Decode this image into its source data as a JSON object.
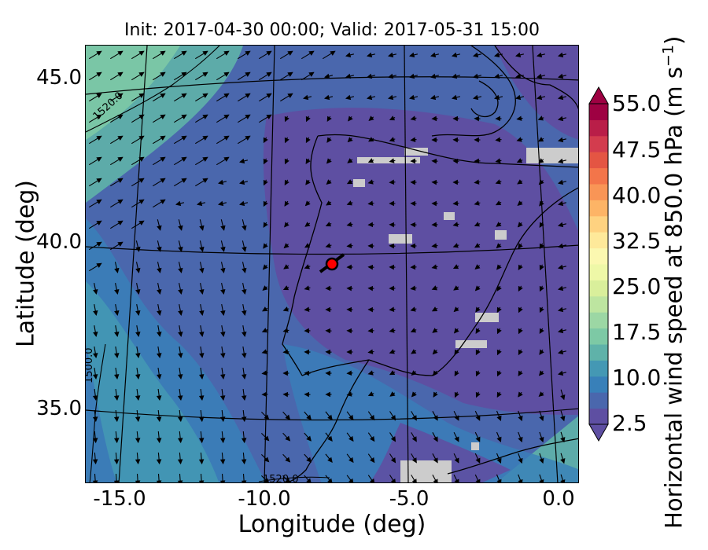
{
  "title": "Init: 2017-04-30 00:00; Valid: 2017-05-31 15:00",
  "axes": {
    "xlabel": "Longitude (deg)",
    "ylabel": "Latitude (deg)",
    "x_ticks": [
      "-15.0",
      "-10.0",
      "-5.0",
      "0.0"
    ],
    "y_ticks": [
      "45.0",
      "40.0",
      "35.0"
    ]
  },
  "colorbar": {
    "label": "Horizontal wind speed at 850.0 hPa (m s",
    "label_unit_superscript": "−1",
    "label_close": ")",
    "ticks": [
      "55.0",
      "47.5",
      "40.0",
      "32.5",
      "25.0",
      "17.5",
      "10.0",
      "2.5"
    ],
    "colors": [
      "#5e4fa2",
      "#4a67ad",
      "#3880b9",
      "#4498b4",
      "#5fb2a9",
      "#7dc9a5",
      "#9cd7a4",
      "#bde5a0",
      "#d9ef9b",
      "#eef8a7",
      "#fbf8b0",
      "#fee99a",
      "#fed280",
      "#fdb466",
      "#f99556",
      "#f3754a",
      "#e45543",
      "#d33c4e",
      "#b91e48",
      "#9e0142"
    ]
  },
  "contour_labels": [
    "1520.0",
    "1500.0",
    "1520.0"
  ],
  "marker": {
    "lon": -7.6,
    "lat": 39.3,
    "color": "#ff0000"
  },
  "colors": {
    "background_flow": "#5e4fa2",
    "arrow": "#000000",
    "land_mask": "#cccccc"
  }
}
